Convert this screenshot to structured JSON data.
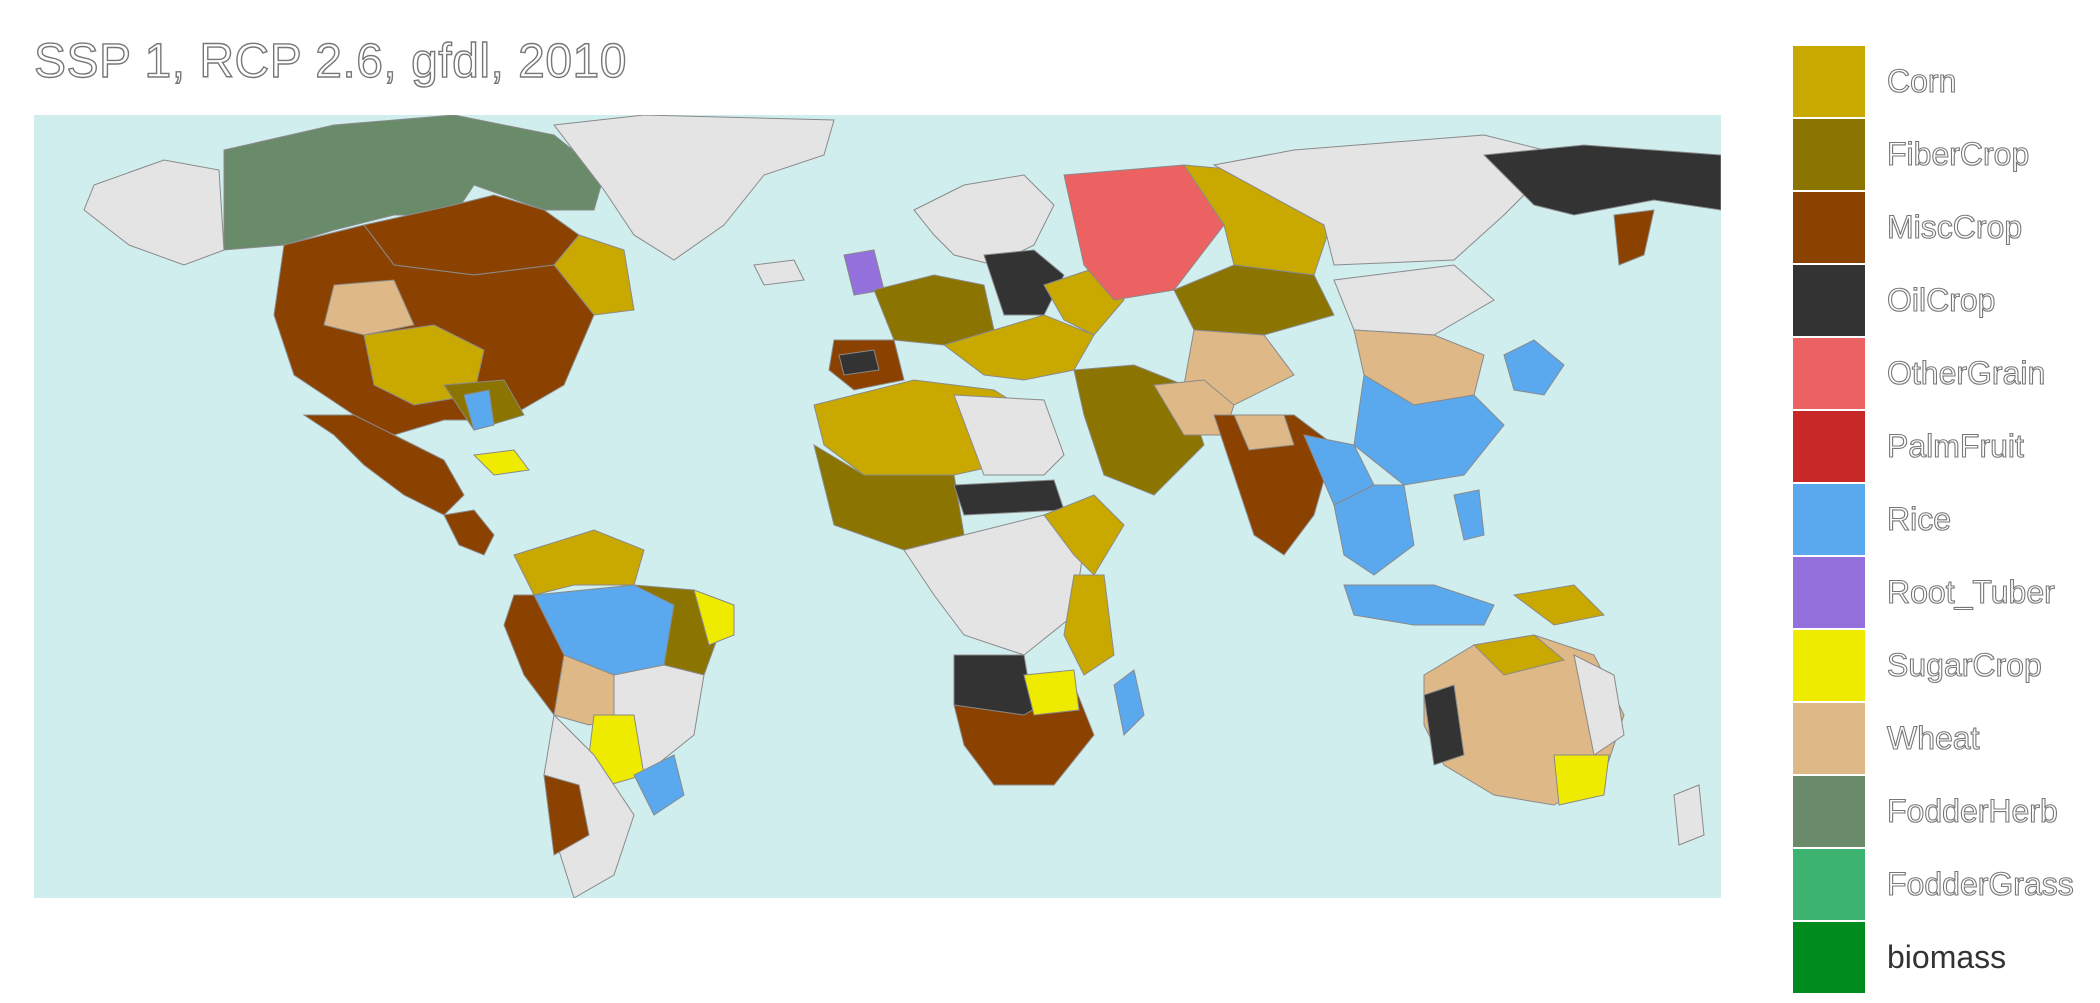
{
  "title": "SSP 1, RCP 2.6, gfdl, 2010",
  "map": {
    "ocean_color": "#d1eeee",
    "unmapped_land_color": "#e4e4e4",
    "border_color": "#8a8a8a"
  },
  "legend": {
    "items": [
      {
        "label": "Corn",
        "color": "#c9a800"
      },
      {
        "label": "FiberCrop",
        "color": "#8b7400"
      },
      {
        "label": "MiscCrop",
        "color": "#8b4200"
      },
      {
        "label": "OilCrop",
        "color": "#333333"
      },
      {
        "label": "OtherGrain",
        "color": "#ec6262"
      },
      {
        "label": "PalmFruit",
        "color": "#c92828"
      },
      {
        "label": "Rice",
        "color": "#5aa8ee"
      },
      {
        "label": "Root_Tuber",
        "color": "#9370db"
      },
      {
        "label": "SugarCrop",
        "color": "#eeea00"
      },
      {
        "label": "Wheat",
        "color": "#dfb887"
      },
      {
        "label": "FodderHerb",
        "color": "#698b69"
      },
      {
        "label": "FodderGrass",
        "color": "#3cb371"
      },
      {
        "label": "biomass",
        "color": "#008b1e"
      }
    ]
  }
}
